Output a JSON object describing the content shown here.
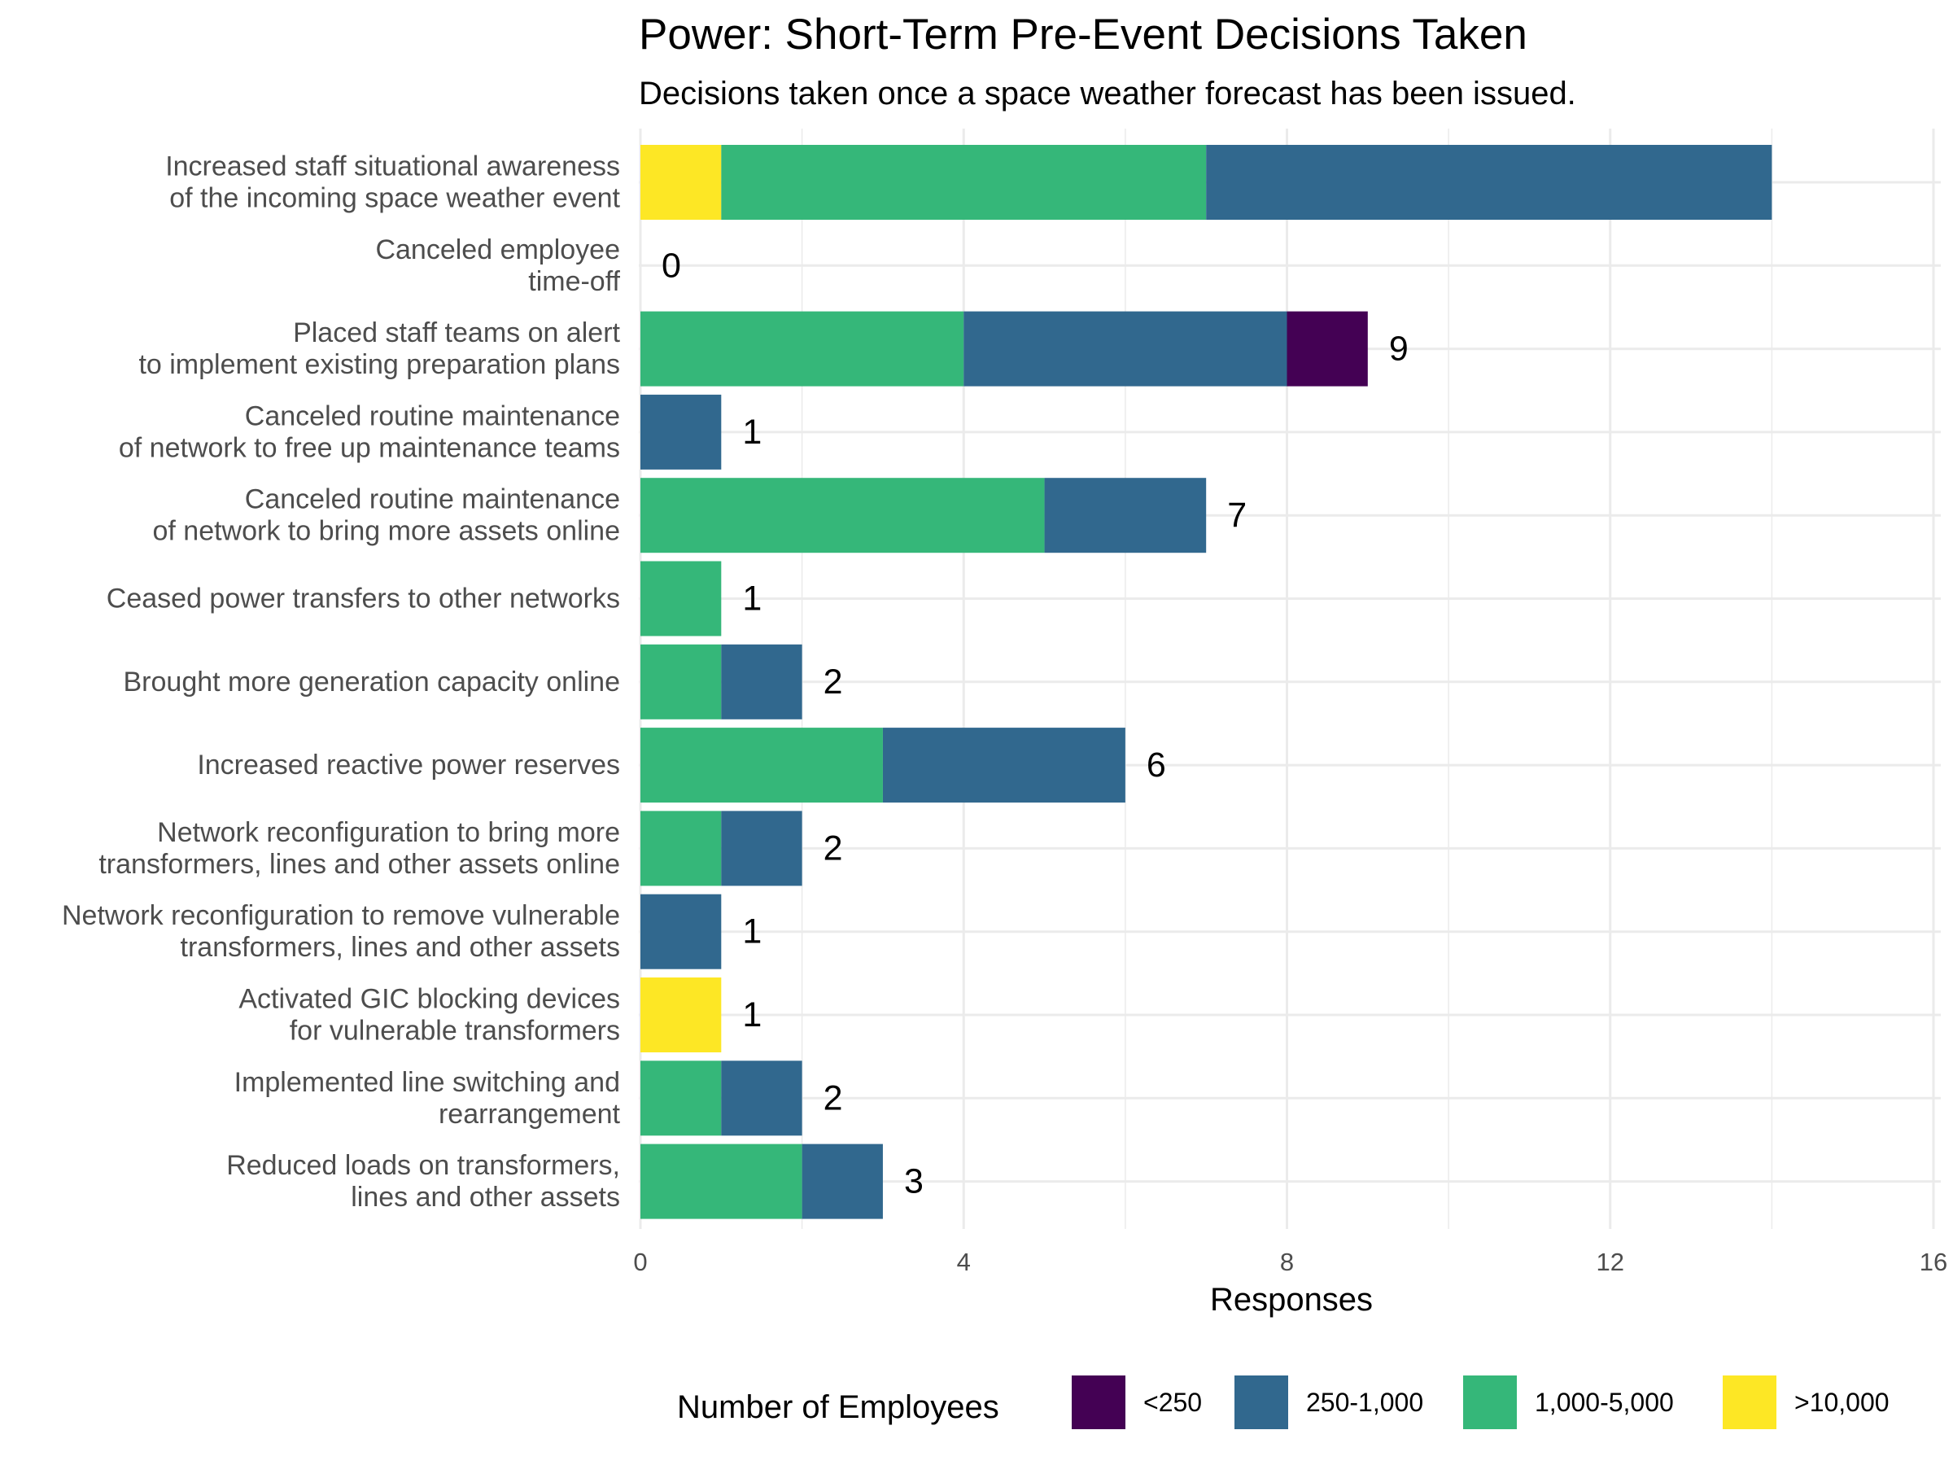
{
  "chart_data": {
    "type": "bar",
    "orientation": "horizontal",
    "stacked": true,
    "title": "Power: Short-Term Pre-Event Decisions Taken",
    "subtitle": "Decisions taken once a space weather forecast has been issued.",
    "xlabel": "Responses",
    "ylabel": "",
    "xlim": [
      0,
      16
    ],
    "x_ticks": [
      "0",
      "4",
      "8",
      "12",
      "16"
    ],
    "grid": true,
    "legend_title": "Number of Employees",
    "legend_position": "bottom",
    "categories": [
      [
        "Increased staff situational awareness",
        "of the incoming space weather event"
      ],
      [
        "Canceled employee",
        "time-off"
      ],
      [
        "Placed staff teams on alert",
        "to implement existing preparation plans"
      ],
      [
        "Canceled routine maintenance",
        "of network to free up maintenance teams"
      ],
      [
        "Canceled routine maintenance",
        "of network to bring more assets online"
      ],
      [
        "Ceased power transfers to other networks"
      ],
      [
        "Brought more generation capacity online"
      ],
      [
        "Increased reactive power reserves"
      ],
      [
        "Network reconfiguration to bring more",
        "transformers, lines and other assets online"
      ],
      [
        "Network reconfiguration to remove vulnerable",
        "transformers, lines and other assets"
      ],
      [
        "Activated GIC blocking devices",
        "for vulnerable transformers"
      ],
      [
        "Implemented line switching and",
        "rearrangement"
      ],
      [
        "Reduced loads on transformers,",
        "lines and other assets"
      ]
    ],
    "series": [
      {
        "name": ">10,000",
        "color": "#FDE725",
        "values": [
          1,
          0,
          0,
          0,
          0,
          0,
          0,
          0,
          0,
          0,
          1,
          0,
          0
        ]
      },
      {
        "name": "1,000-5,000",
        "color": "#35B779",
        "values": [
          6,
          0,
          4,
          0,
          5,
          1,
          1,
          3,
          1,
          0,
          0,
          1,
          2
        ]
      },
      {
        "name": "250-1,000",
        "color": "#31688E",
        "values": [
          7,
          0,
          4,
          1,
          2,
          0,
          1,
          3,
          1,
          1,
          0,
          1,
          1
        ]
      },
      {
        "name": "<250",
        "color": "#440154",
        "values": [
          0,
          0,
          1,
          0,
          0,
          0,
          0,
          0,
          0,
          0,
          0,
          0,
          0
        ]
      }
    ],
    "totals": [
      "",
      "0",
      "9",
      "1",
      "7",
      "1",
      "2",
      "6",
      "2",
      "1",
      "1",
      "2",
      "3"
    ],
    "legend_order": [
      "<250",
      "250-1,000",
      "1,000-5,000",
      ">10,000"
    ],
    "colors": {
      "grid": "#EBEBEB",
      "text_muted": "#4D4D4D"
    }
  }
}
